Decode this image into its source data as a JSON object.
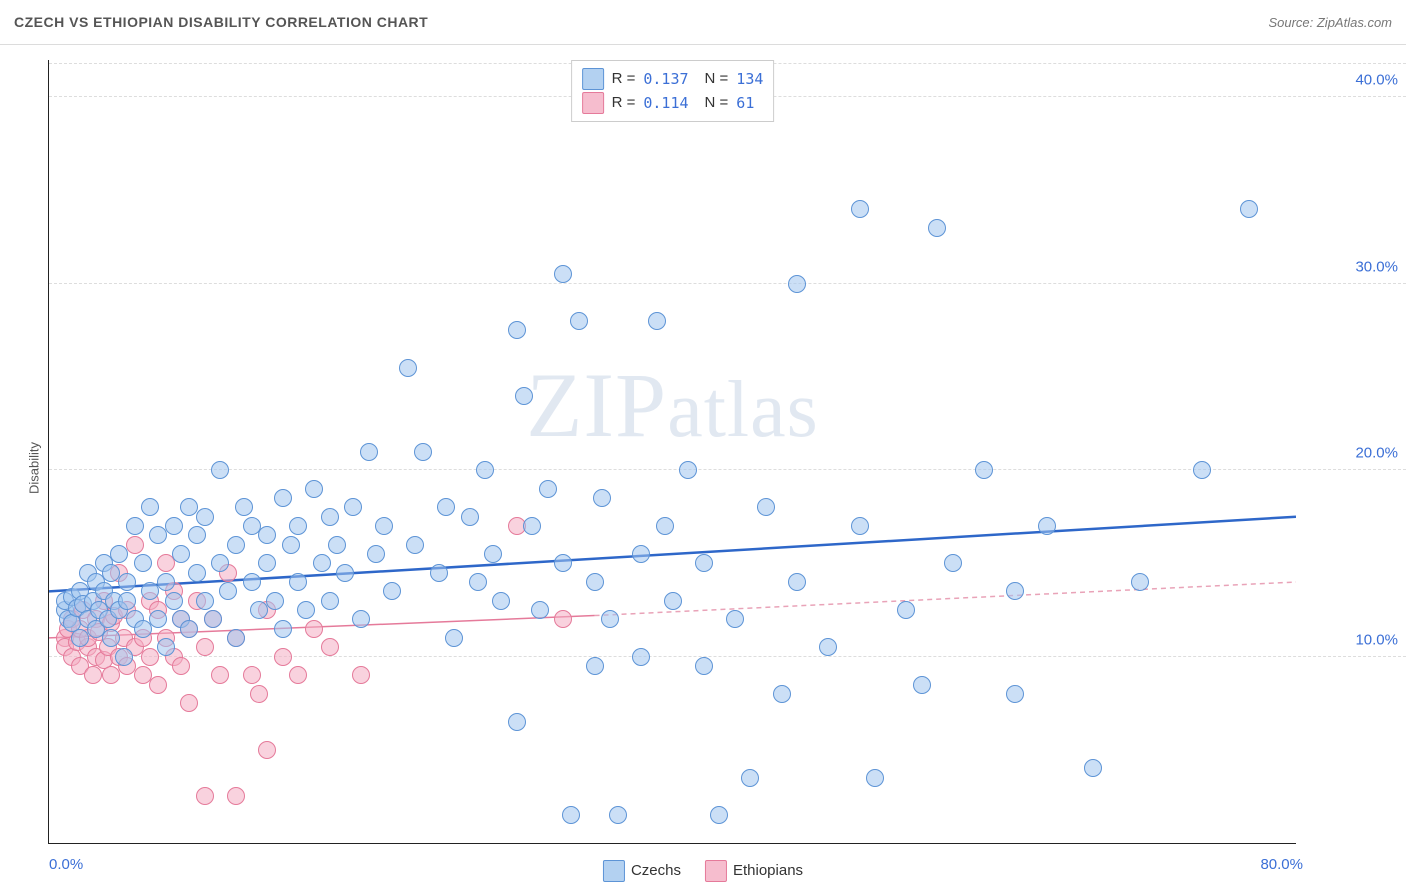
{
  "header": {
    "title": "CZECH VS ETHIOPIAN DISABILITY CORRELATION CHART",
    "source": "Source: ZipAtlas.com"
  },
  "chart": {
    "type": "scatter",
    "y_axis_label": "Disability",
    "xlim": [
      0,
      80
    ],
    "ylim": [
      0,
      42
    ],
    "y_ticks": [
      10,
      20,
      30,
      40
    ],
    "y_tick_labels": [
      "10.0%",
      "20.0%",
      "30.0%",
      "40.0%"
    ],
    "x_ticks": [
      0,
      80
    ],
    "x_tick_labels": [
      "0.0%",
      "80.0%"
    ],
    "grid_color": "#dddddd",
    "axis_color": "#222222",
    "background_color": "#ffffff",
    "watermark": "ZIPatlas",
    "series": [
      {
        "name": "Czechs",
        "marker_fill": "rgba(160,197,238,0.55)",
        "marker_stroke": "#5d94d6",
        "marker_radius": 8,
        "trend": {
          "type": "solid",
          "color": "#2e67c9",
          "width": 2.5,
          "y_at_xmin": 13.5,
          "y_at_xmax": 17.5
        },
        "R": 0.137,
        "N": 134,
        "points": [
          [
            1,
            12.5
          ],
          [
            1,
            13.0
          ],
          [
            1.2,
            12.0
          ],
          [
            1.5,
            11.8
          ],
          [
            1.5,
            13.2
          ],
          [
            1.8,
            12.6
          ],
          [
            2,
            11.0
          ],
          [
            2,
            13.5
          ],
          [
            2.2,
            12.8
          ],
          [
            2.5,
            12.0
          ],
          [
            2.5,
            14.5
          ],
          [
            2.8,
            13.0
          ],
          [
            3,
            11.5
          ],
          [
            3,
            14.0
          ],
          [
            3.2,
            12.5
          ],
          [
            3.5,
            13.5
          ],
          [
            3.5,
            15.0
          ],
          [
            3.8,
            12.0
          ],
          [
            4,
            11.0
          ],
          [
            4,
            14.5
          ],
          [
            4.2,
            13.0
          ],
          [
            4.5,
            12.5
          ],
          [
            4.5,
            15.5
          ],
          [
            4.8,
            10.0
          ],
          [
            5,
            14.0
          ],
          [
            5,
            13.0
          ],
          [
            5.5,
            12.0
          ],
          [
            5.5,
            17.0
          ],
          [
            6,
            11.5
          ],
          [
            6,
            15.0
          ],
          [
            6.5,
            18.0
          ],
          [
            6.5,
            13.5
          ],
          [
            7,
            12.0
          ],
          [
            7,
            16.5
          ],
          [
            7.5,
            14.0
          ],
          [
            7.5,
            10.5
          ],
          [
            8,
            17.0
          ],
          [
            8,
            13.0
          ],
          [
            8.5,
            15.5
          ],
          [
            8.5,
            12.0
          ],
          [
            9,
            18.0
          ],
          [
            9,
            11.5
          ],
          [
            9.5,
            14.5
          ],
          [
            9.5,
            16.5
          ],
          [
            10,
            13.0
          ],
          [
            10,
            17.5
          ],
          [
            10.5,
            12.0
          ],
          [
            11,
            15.0
          ],
          [
            11,
            20.0
          ],
          [
            11.5,
            13.5
          ],
          [
            12,
            16.0
          ],
          [
            12,
            11.0
          ],
          [
            12.5,
            18.0
          ],
          [
            13,
            14.0
          ],
          [
            13,
            17.0
          ],
          [
            13.5,
            12.5
          ],
          [
            14,
            16.5
          ],
          [
            14,
            15.0
          ],
          [
            14.5,
            13.0
          ],
          [
            15,
            18.5
          ],
          [
            15,
            11.5
          ],
          [
            15.5,
            16.0
          ],
          [
            16,
            14.0
          ],
          [
            16,
            17.0
          ],
          [
            16.5,
            12.5
          ],
          [
            17,
            19.0
          ],
          [
            17.5,
            15.0
          ],
          [
            18,
            17.5
          ],
          [
            18,
            13.0
          ],
          [
            18.5,
            16.0
          ],
          [
            19,
            14.5
          ],
          [
            19.5,
            18.0
          ],
          [
            20,
            12.0
          ],
          [
            20.5,
            21.0
          ],
          [
            21,
            15.5
          ],
          [
            21.5,
            17.0
          ],
          [
            22,
            13.5
          ],
          [
            23,
            25.5
          ],
          [
            23.5,
            16.0
          ],
          [
            24,
            21.0
          ],
          [
            25,
            14.5
          ],
          [
            25.5,
            18.0
          ],
          [
            26,
            11.0
          ],
          [
            27,
            17.5
          ],
          [
            27.5,
            14.0
          ],
          [
            28,
            20.0
          ],
          [
            28.5,
            15.5
          ],
          [
            29,
            13.0
          ],
          [
            30,
            27.5
          ],
          [
            30,
            6.5
          ],
          [
            30.5,
            24.0
          ],
          [
            31,
            17.0
          ],
          [
            31.5,
            12.5
          ],
          [
            32,
            19.0
          ],
          [
            33,
            30.5
          ],
          [
            33,
            15.0
          ],
          [
            33.5,
            1.5
          ],
          [
            34,
            28.0
          ],
          [
            35,
            14.0
          ],
          [
            35,
            9.5
          ],
          [
            35.5,
            18.5
          ],
          [
            36,
            12.0
          ],
          [
            36.5,
            1.5
          ],
          [
            38,
            15.5
          ],
          [
            38,
            10.0
          ],
          [
            39,
            28.0
          ],
          [
            39.5,
            17.0
          ],
          [
            40,
            13.0
          ],
          [
            41,
            20.0
          ],
          [
            42,
            9.5
          ],
          [
            42,
            15.0
          ],
          [
            43,
            1.5
          ],
          [
            44,
            12.0
          ],
          [
            45,
            3.5
          ],
          [
            46,
            18.0
          ],
          [
            47,
            8.0
          ],
          [
            48,
            30.0
          ],
          [
            48,
            14.0
          ],
          [
            50,
            10.5
          ],
          [
            52,
            17.0
          ],
          [
            52,
            34.0
          ],
          [
            53,
            3.5
          ],
          [
            55,
            12.5
          ],
          [
            56,
            8.5
          ],
          [
            57,
            33.0
          ],
          [
            58,
            15.0
          ],
          [
            60,
            20.0
          ],
          [
            62,
            8.0
          ],
          [
            62,
            13.5
          ],
          [
            64,
            17.0
          ],
          [
            67,
            4.0
          ],
          [
            70,
            14.0
          ],
          [
            74,
            20.0
          ],
          [
            77,
            34.0
          ]
        ]
      },
      {
        "name": "Ethiopians",
        "marker_fill": "rgba(244,173,194,0.55)",
        "marker_stroke": "#e57a9a",
        "marker_radius": 8,
        "trend_solid": {
          "color": "#e57a9a",
          "width": 1.5,
          "x_start": 0,
          "x_end": 35,
          "y_at_start": 11.0,
          "y_at_end": 12.2
        },
        "trend_dash": {
          "color": "#e9a3b8",
          "width": 1.5,
          "x_start": 35,
          "x_end": 80,
          "y_at_start": 12.2,
          "y_at_end": 14.0
        },
        "R": 0.114,
        "N": 61,
        "points": [
          [
            1,
            11.0
          ],
          [
            1,
            10.5
          ],
          [
            1.2,
            11.5
          ],
          [
            1.5,
            10.0
          ],
          [
            1.5,
            12.0
          ],
          [
            1.8,
            10.8
          ],
          [
            2,
            11.5
          ],
          [
            2,
            9.5
          ],
          [
            2.2,
            12.5
          ],
          [
            2.5,
            10.5
          ],
          [
            2.5,
            11.0
          ],
          [
            2.8,
            9.0
          ],
          [
            3,
            12.0
          ],
          [
            3,
            10.0
          ],
          [
            3.2,
            11.3
          ],
          [
            3.5,
            9.8
          ],
          [
            3.5,
            13.0
          ],
          [
            3.8,
            10.5
          ],
          [
            4,
            11.8
          ],
          [
            4,
            9.0
          ],
          [
            4.2,
            12.2
          ],
          [
            4.5,
            10.0
          ],
          [
            4.5,
            14.5
          ],
          [
            4.8,
            11.0
          ],
          [
            5,
            9.5
          ],
          [
            5,
            12.5
          ],
          [
            5.5,
            10.5
          ],
          [
            5.5,
            16.0
          ],
          [
            6,
            11.0
          ],
          [
            6,
            9.0
          ],
          [
            6.5,
            13.0
          ],
          [
            6.5,
            10.0
          ],
          [
            7,
            12.5
          ],
          [
            7,
            8.5
          ],
          [
            7.5,
            11.0
          ],
          [
            7.5,
            15.0
          ],
          [
            8,
            10.0
          ],
          [
            8,
            13.5
          ],
          [
            8.5,
            9.5
          ],
          [
            8.5,
            12.0
          ],
          [
            9,
            11.5
          ],
          [
            9,
            7.5
          ],
          [
            9.5,
            13.0
          ],
          [
            10,
            10.5
          ],
          [
            10,
            2.5
          ],
          [
            10.5,
            12.0
          ],
          [
            11,
            9.0
          ],
          [
            11.5,
            14.5
          ],
          [
            12,
            2.5
          ],
          [
            12,
            11.0
          ],
          [
            13,
            9.0
          ],
          [
            13.5,
            8.0
          ],
          [
            14,
            5.0
          ],
          [
            14,
            12.5
          ],
          [
            15,
            10.0
          ],
          [
            16,
            9.0
          ],
          [
            17,
            11.5
          ],
          [
            18,
            10.5
          ],
          [
            20,
            9.0
          ],
          [
            30,
            17.0
          ],
          [
            33,
            12.0
          ]
        ]
      }
    ],
    "legend_top": {
      "rows": [
        {
          "swatch": "cz",
          "r_label": "R =",
          "r_val": "0.137",
          "n_label": "N =",
          "n_val": "134"
        },
        {
          "swatch": "et",
          "r_label": "R =",
          "r_val": "0.114",
          "n_label": "N =",
          "n_val": "  61"
        }
      ]
    },
    "legend_bottom": {
      "items": [
        {
          "swatch": "cz",
          "label": "Czechs"
        },
        {
          "swatch": "et",
          "label": "Ethiopians"
        }
      ]
    }
  }
}
